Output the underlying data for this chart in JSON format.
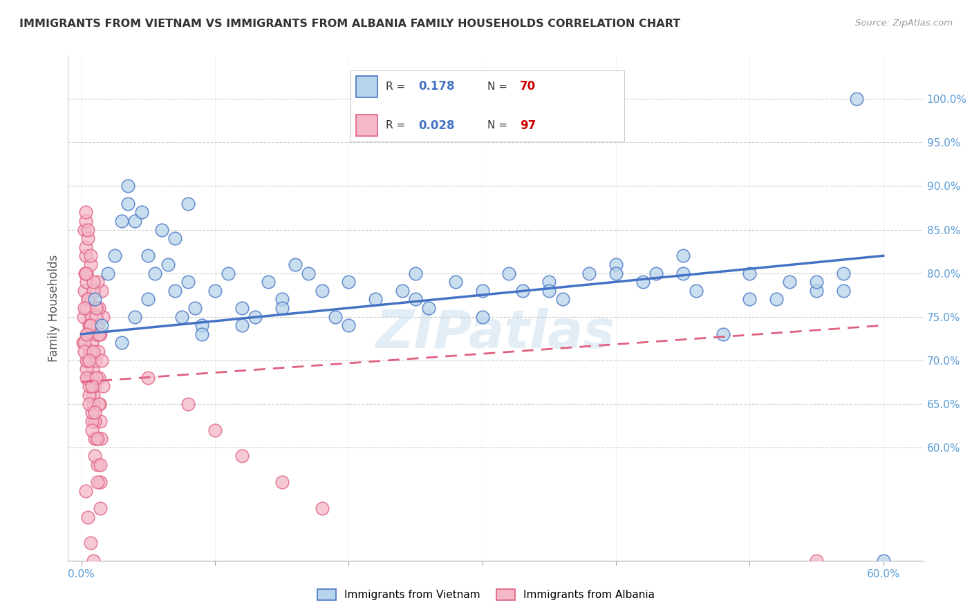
{
  "title": "IMMIGRANTS FROM VIETNAM VS IMMIGRANTS FROM ALBANIA FAMILY HOUSEHOLDS CORRELATION CHART",
  "source": "Source: ZipAtlas.com",
  "ylabel": "Family Households",
  "x_tick_labels_ends": [
    "0.0%",
    "60.0%"
  ],
  "x_tick_values_ends": [
    0,
    60
  ],
  "y_tick_labels": [
    "60.0%",
    "65.0%",
    "70.0%",
    "75.0%",
    "80.0%",
    "85.0%",
    "90.0%",
    "95.0%",
    "100.0%"
  ],
  "y_tick_values": [
    60,
    65,
    70,
    75,
    80,
    85,
    90,
    95,
    100
  ],
  "xlim": [
    -1,
    63
  ],
  "ylim": [
    47,
    105
  ],
  "vietnam_R": 0.178,
  "vietnam_N": 70,
  "albania_R": 0.028,
  "albania_N": 97,
  "vietnam_color": "#b8d4ea",
  "vietnam_line_color": "#4472c4",
  "albania_color": "#f4b8c8",
  "albania_line_color": "#e06080",
  "watermark": "ZIPatlas",
  "legend_vietnam": "Immigrants from Vietnam",
  "legend_albania": "Immigrants from Albania",
  "vietnam_trendline_x": [
    0,
    60
  ],
  "vietnam_trendline_y": [
    73.0,
    82.0
  ],
  "albania_trendline_x": [
    0,
    60
  ],
  "albania_trendline_y": [
    67.5,
    74.0
  ],
  "vietnam_x": [
    1.0,
    1.5,
    2.0,
    2.5,
    3.0,
    3.5,
    4.0,
    4.5,
    5.0,
    5.5,
    6.0,
    6.5,
    7.0,
    7.5,
    8.0,
    8.5,
    9.0,
    10.0,
    11.0,
    12.0,
    13.0,
    14.0,
    15.0,
    16.0,
    17.0,
    18.0,
    19.0,
    20.0,
    22.0,
    24.0,
    25.0,
    26.0,
    28.0,
    30.0,
    32.0,
    33.0,
    35.0,
    36.0,
    38.0,
    40.0,
    42.0,
    43.0,
    45.0,
    46.0,
    48.0,
    50.0,
    52.0,
    53.0,
    55.0,
    57.0,
    3.0,
    4.0,
    5.0,
    7.0,
    9.0,
    12.0,
    15.0,
    20.0,
    25.0,
    30.0,
    35.0,
    40.0,
    45.0,
    50.0,
    55.0,
    57.0,
    58.0,
    3.5,
    8.0,
    60.0
  ],
  "vietnam_y": [
    77,
    74,
    80,
    82,
    86,
    88,
    86,
    87,
    82,
    80,
    85,
    81,
    78,
    75,
    79,
    76,
    74,
    78,
    80,
    76,
    75,
    79,
    77,
    81,
    80,
    78,
    75,
    79,
    77,
    78,
    80,
    76,
    79,
    78,
    80,
    78,
    79,
    77,
    80,
    81,
    79,
    80,
    82,
    78,
    73,
    80,
    77,
    79,
    78,
    80,
    72,
    75,
    77,
    84,
    73,
    74,
    76,
    74,
    77,
    75,
    78,
    80,
    80,
    77,
    79,
    78,
    100,
    90,
    88,
    47
  ],
  "albania_x": [
    0.1,
    0.15,
    0.2,
    0.25,
    0.3,
    0.35,
    0.4,
    0.45,
    0.5,
    0.55,
    0.6,
    0.65,
    0.7,
    0.75,
    0.8,
    0.85,
    0.9,
    0.95,
    1.0,
    1.05,
    1.1,
    1.15,
    1.2,
    1.25,
    1.3,
    1.35,
    1.4,
    1.45,
    1.5,
    1.6,
    0.2,
    0.3,
    0.4,
    0.5,
    0.6,
    0.7,
    0.8,
    0.9,
    1.0,
    1.1,
    1.2,
    1.3,
    1.4,
    1.5,
    1.6,
    0.3,
    0.5,
    0.7,
    0.9,
    1.1,
    0.2,
    0.4,
    0.6,
    0.8,
    1.0,
    1.2,
    1.4,
    0.3,
    0.5,
    0.7,
    0.9,
    1.1,
    1.3,
    0.4,
    0.6,
    0.8,
    5.0,
    8.0,
    10.0,
    12.0,
    15.0,
    18.0,
    0.2,
    0.4,
    0.6,
    0.8,
    1.0,
    1.2,
    1.4,
    0.3,
    0.5,
    0.7,
    0.9,
    1.1,
    1.3,
    0.2,
    0.4,
    0.6,
    0.8,
    1.0,
    55.0,
    1.2,
    1.4,
    0.3,
    0.5,
    0.7,
    0.9
  ],
  "albania_y": [
    72,
    75,
    78,
    80,
    82,
    79,
    76,
    73,
    70,
    68,
    71,
    74,
    77,
    75,
    72,
    69,
    66,
    63,
    67,
    70,
    73,
    76,
    74,
    71,
    68,
    65,
    63,
    61,
    78,
    75,
    85,
    83,
    80,
    77,
    74,
    71,
    68,
    65,
    63,
    61,
    79,
    76,
    73,
    70,
    67,
    86,
    84,
    81,
    78,
    75,
    72,
    69,
    66,
    63,
    61,
    58,
    56,
    87,
    85,
    82,
    79,
    76,
    73,
    70,
    67,
    64,
    68,
    65,
    62,
    59,
    56,
    53,
    71,
    68,
    65,
    62,
    59,
    56,
    53,
    80,
    77,
    74,
    71,
    68,
    65,
    76,
    73,
    70,
    67,
    64,
    47,
    61,
    58,
    55,
    52,
    49,
    47
  ]
}
